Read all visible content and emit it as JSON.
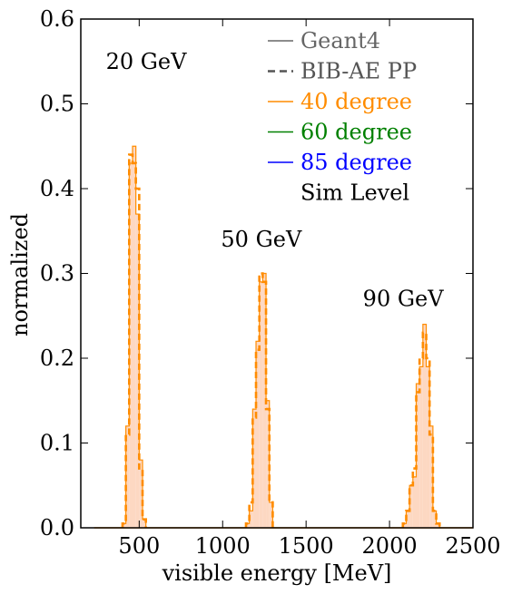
{
  "chart_data": {
    "type": "histogram",
    "xlabel": "visible energy [MeV]",
    "ylabel": "normalized",
    "xlim": [
      150,
      2500
    ],
    "ylim": [
      0,
      0.6
    ],
    "xticks": [
      500,
      1000,
      1500,
      2000,
      2500
    ],
    "yticks": [
      0.0,
      0.1,
      0.2,
      0.3,
      0.4,
      0.5,
      0.6
    ],
    "xtick_labels": [
      "500",
      "1000",
      "1500",
      "2000",
      "2500"
    ],
    "ytick_labels": [
      "0.0",
      "0.1",
      "0.2",
      "0.3",
      "0.4",
      "0.5",
      "0.6"
    ],
    "bin_width": 20,
    "legend": {
      "placement": "top-right",
      "entries": [
        {
          "label": "Geant4",
          "style": "solid",
          "color": "#666666"
        },
        {
          "label": "BIB-AE PP",
          "style": "dashed",
          "color": "#555555"
        },
        {
          "label": "40 degree",
          "style": "solid",
          "color": "#ff8c00"
        },
        {
          "label": "60 degree",
          "style": "solid",
          "color": "#008000"
        },
        {
          "label": "85 degree",
          "style": "solid",
          "color": "#0000ff"
        },
        {
          "label": "Sim Level",
          "style": "none",
          "color": "#000000"
        }
      ]
    },
    "annotations": [
      {
        "text": "20 GeV",
        "x": 300,
        "y": 0.55
      },
      {
        "text": "50 GeV",
        "x": 990,
        "y": 0.34
      },
      {
        "text": "90 GeV",
        "x": 1840,
        "y": 0.27
      }
    ],
    "series": [
      {
        "name": "Geant4",
        "style": "filled-step",
        "fill": "#fdd8c2",
        "edge": "#ff8c00",
        "x": [
          410,
          430,
          450,
          470,
          490,
          510,
          530,
          1150,
          1170,
          1190,
          1210,
          1230,
          1250,
          1270,
          1290,
          2090,
          2110,
          2130,
          2150,
          2170,
          2190,
          2210,
          2230,
          2250,
          2270,
          2290
        ],
        "values": [
          0.005,
          0.12,
          0.43,
          0.45,
          0.37,
          0.08,
          0.01,
          0.005,
          0.02,
          0.14,
          0.22,
          0.29,
          0.3,
          0.15,
          0.03,
          0.005,
          0.02,
          0.05,
          0.06,
          0.17,
          0.19,
          0.24,
          0.19,
          0.12,
          0.02,
          0.005
        ]
      },
      {
        "name": "BIB-AE PP",
        "style": "dashed-step",
        "color": "#ff8c00",
        "x": [
          410,
          430,
          450,
          470,
          490,
          510,
          530,
          1150,
          1170,
          1190,
          1210,
          1230,
          1250,
          1270,
          1290,
          2090,
          2110,
          2130,
          2150,
          2170,
          2190,
          2210,
          2230,
          2250,
          2270,
          2290
        ],
        "values": [
          0.005,
          0.11,
          0.44,
          0.43,
          0.4,
          0.07,
          0.01,
          0.005,
          0.03,
          0.13,
          0.21,
          0.3,
          0.29,
          0.14,
          0.03,
          0.005,
          0.02,
          0.05,
          0.07,
          0.16,
          0.2,
          0.23,
          0.2,
          0.11,
          0.02,
          0.005
        ]
      }
    ]
  }
}
